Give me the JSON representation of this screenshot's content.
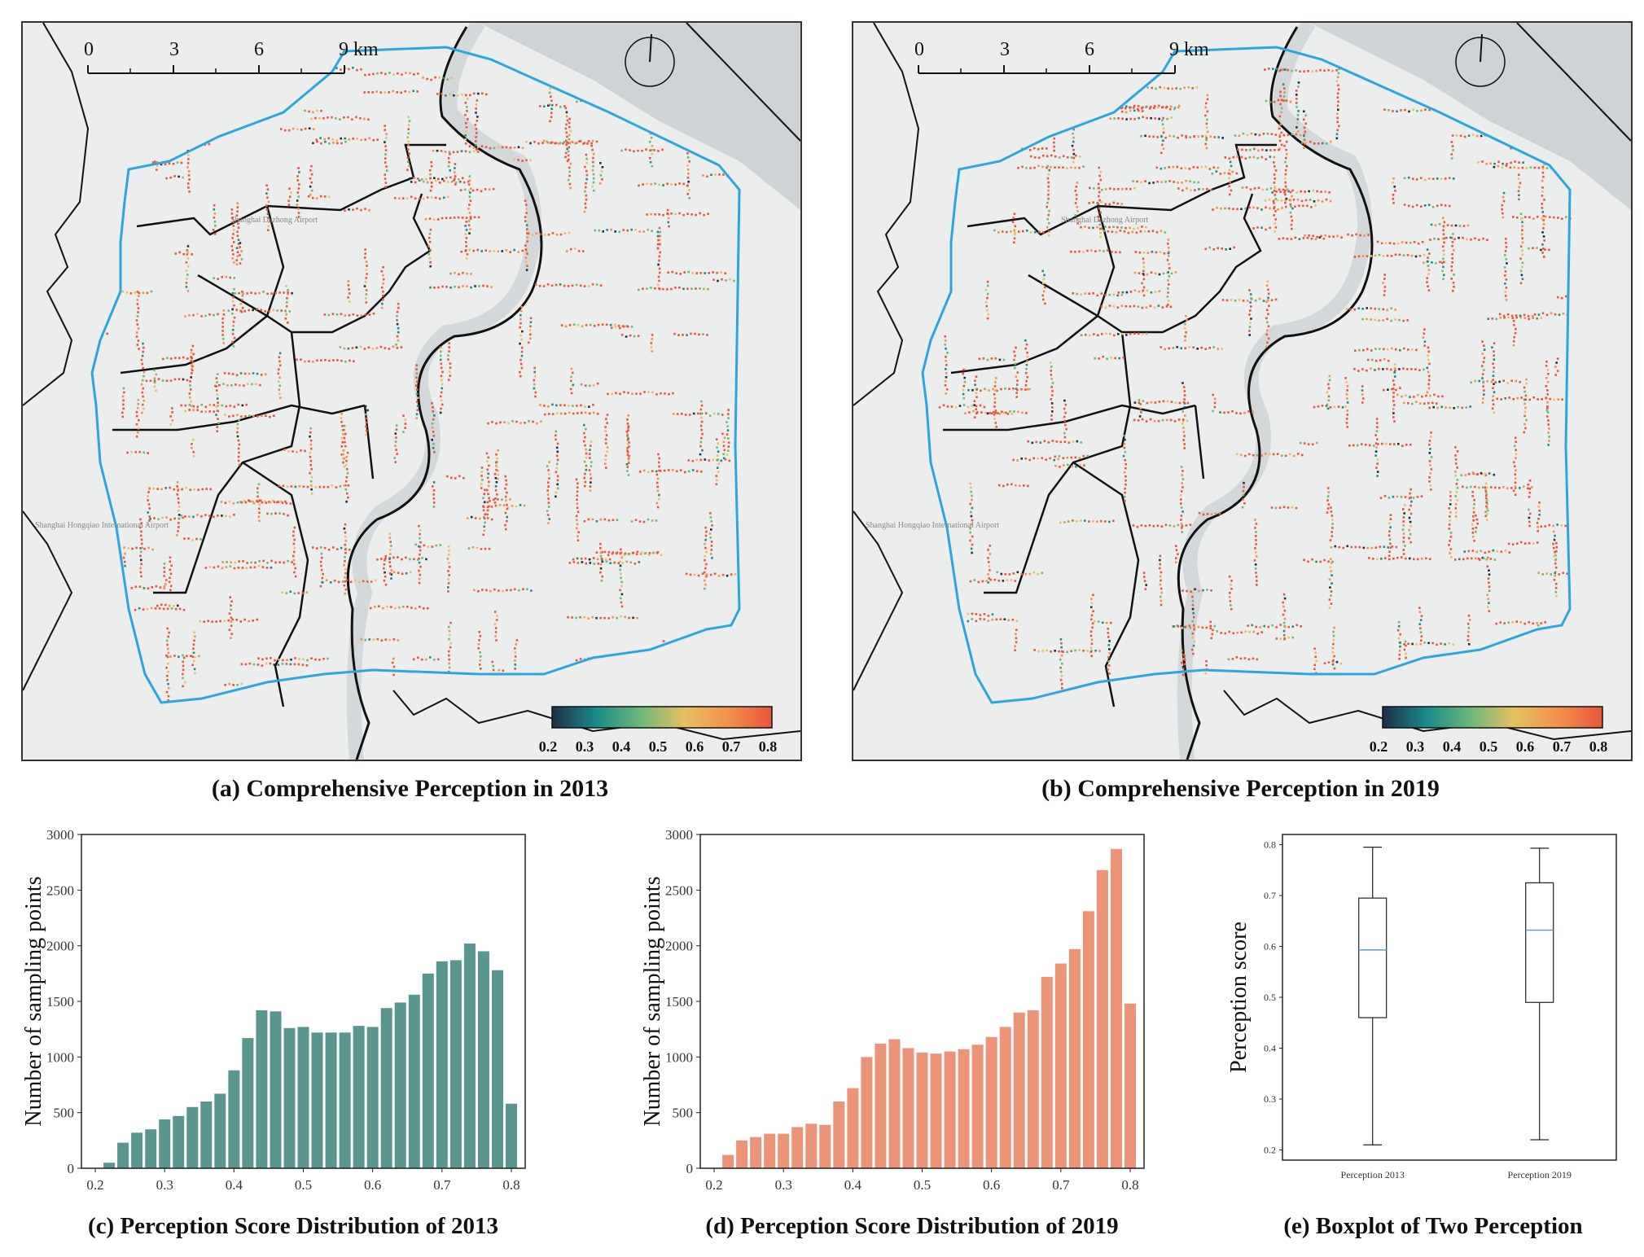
{
  "map_panels": [
    {
      "caption": "(a) Comprehensive Perception in 2013",
      "scale_labels": [
        "0",
        "3",
        "6",
        "9 km"
      ],
      "colorbar_ticks": [
        "0.2",
        "0.3",
        "0.4",
        "0.5",
        "0.6",
        "0.7",
        "0.8"
      ],
      "basemap_labels": [
        "Shanghai Dazhong Airport",
        "Shanghai Hongqiao International Airport"
      ],
      "colormap": [
        "#1c2f45",
        "#1b8a8a",
        "#6bb87a",
        "#e6c062",
        "#f2914e",
        "#e9553a"
      ]
    },
    {
      "caption": "(b) Comprehensive Perception in 2019",
      "scale_labels": [
        "0",
        "3",
        "6",
        "9 km"
      ],
      "colorbar_ticks": [
        "0.2",
        "0.3",
        "0.4",
        "0.5",
        "0.6",
        "0.7",
        "0.8"
      ],
      "basemap_labels": [
        "Shanghai Dazhong Airport",
        "Shanghai Hongqiao International Airport"
      ],
      "colormap": [
        "#1c2f45",
        "#1b8a8a",
        "#6bb87a",
        "#e6c062",
        "#f2914e",
        "#e9553a"
      ]
    }
  ],
  "chart_data": [
    {
      "type": "bar",
      "caption": "(c) Perception Score Distribution of 2013",
      "ylabel": "Number of sampling points",
      "xlabel": "",
      "color": "#5b9590",
      "xlim": [
        0.18,
        0.82
      ],
      "ylim": [
        0,
        3000
      ],
      "xticks": [
        0.2,
        0.3,
        0.4,
        0.5,
        0.6,
        0.7,
        0.8
      ],
      "xtick_labels": [
        "0.2",
        "0.3",
        "0.4",
        "0.5",
        "0.6",
        "0.7",
        "0.8"
      ],
      "yticks": [
        0,
        500,
        1000,
        1500,
        2000,
        2500,
        3000
      ],
      "ytick_labels": [
        "0",
        "500",
        "1000",
        "1500",
        "2000",
        "2500",
        "3000"
      ],
      "x": [
        0.22,
        0.24,
        0.26,
        0.28,
        0.3,
        0.32,
        0.34,
        0.36,
        0.38,
        0.4,
        0.42,
        0.44,
        0.46,
        0.48,
        0.5,
        0.52,
        0.54,
        0.56,
        0.58,
        0.6,
        0.62,
        0.64,
        0.66,
        0.68,
        0.7,
        0.72,
        0.74,
        0.76,
        0.78,
        0.8
      ],
      "values": [
        50,
        230,
        320,
        350,
        440,
        470,
        550,
        600,
        670,
        880,
        1170,
        1420,
        1410,
        1260,
        1270,
        1220,
        1220,
        1220,
        1280,
        1270,
        1440,
        1490,
        1560,
        1750,
        1860,
        1870,
        2020,
        1950,
        1780,
        580
      ]
    },
    {
      "type": "bar",
      "caption": "(d) Perception Score Distribution of 2019",
      "ylabel": "Number of sampling points",
      "xlabel": "",
      "color": "#ec9478",
      "xlim": [
        0.18,
        0.82
      ],
      "ylim": [
        0,
        3000
      ],
      "xticks": [
        0.2,
        0.3,
        0.4,
        0.5,
        0.6,
        0.7,
        0.8
      ],
      "xtick_labels": [
        "0.2",
        "0.3",
        "0.4",
        "0.5",
        "0.6",
        "0.7",
        "0.8"
      ],
      "yticks": [
        0,
        500,
        1000,
        1500,
        2000,
        2500,
        3000
      ],
      "ytick_labels": [
        "0",
        "500",
        "1000",
        "1500",
        "2000",
        "2500",
        "3000"
      ],
      "x": [
        0.22,
        0.24,
        0.26,
        0.28,
        0.3,
        0.32,
        0.34,
        0.36,
        0.38,
        0.4,
        0.42,
        0.44,
        0.46,
        0.48,
        0.5,
        0.52,
        0.54,
        0.56,
        0.58,
        0.6,
        0.62,
        0.64,
        0.66,
        0.68,
        0.7,
        0.72,
        0.74,
        0.76,
        0.78,
        0.8
      ],
      "values": [
        120,
        250,
        280,
        310,
        310,
        370,
        400,
        390,
        600,
        720,
        1000,
        1120,
        1160,
        1080,
        1040,
        1030,
        1050,
        1070,
        1110,
        1180,
        1270,
        1400,
        1420,
        1720,
        1840,
        1970,
        2310,
        2680,
        2870,
        1480
      ]
    },
    {
      "type": "boxplot",
      "caption": "(e) Boxplot of Two Perception",
      "ylabel": "Perception score",
      "categories": [
        "Perception 2013",
        "Perception 2019"
      ],
      "ylim": [
        0.18,
        0.82
      ],
      "yticks": [
        0.2,
        0.3,
        0.4,
        0.5,
        0.6,
        0.7,
        0.8
      ],
      "ytick_labels": [
        "0.2",
        "0.3",
        "0.4",
        "0.5",
        "0.6",
        "0.7",
        "0.8"
      ],
      "boxes": [
        {
          "min": 0.21,
          "q1": 0.46,
          "median": 0.593,
          "q3": 0.695,
          "max": 0.795
        },
        {
          "min": 0.22,
          "q1": 0.49,
          "median": 0.632,
          "q3": 0.725,
          "max": 0.793
        }
      ],
      "median_color": "#5a9ec9"
    }
  ]
}
